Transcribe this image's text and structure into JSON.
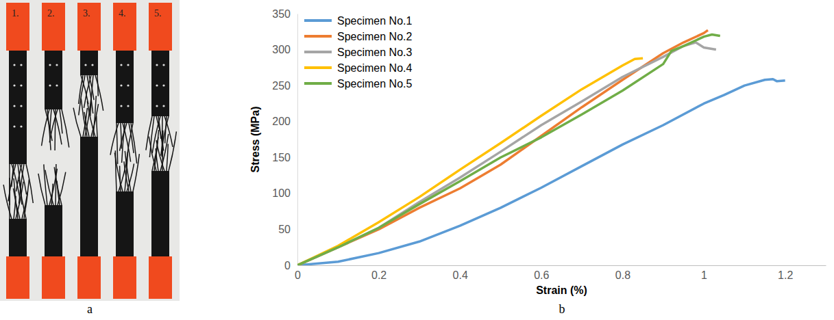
{
  "photo": {
    "panel_label": "a",
    "specimen_labels": [
      "1.",
      "2.",
      "3.",
      "4.",
      "5."
    ]
  },
  "chart_data": {
    "type": "line",
    "panel_label": "b",
    "x_label": "Strain (%)",
    "y_label": "Stress (MPa)",
    "xlim": [
      0,
      1.3
    ],
    "xticks": [
      0,
      0.2,
      0.4,
      0.6,
      0.8,
      1,
      1.2
    ],
    "ylim": [
      0,
      350
    ],
    "yticks": [
      0,
      50,
      100,
      150,
      200,
      250,
      300,
      350
    ],
    "grid": false,
    "legend": "upper left",
    "series": [
      {
        "name": "Specimen No.1",
        "color": "#5b9bd5",
        "x": [
          0,
          0.1,
          0.2,
          0.3,
          0.4,
          0.5,
          0.6,
          0.7,
          0.8,
          0.9,
          1.0,
          1.05,
          1.1,
          1.15,
          1.17,
          1.18,
          1.2
        ],
        "values": [
          0,
          5,
          17,
          33,
          55,
          80,
          108,
          138,
          168,
          195,
          225,
          237,
          250,
          258,
          259,
          256,
          257
        ]
      },
      {
        "name": "Specimen No.2",
        "color": "#ed7d31",
        "x": [
          0,
          0.1,
          0.2,
          0.3,
          0.4,
          0.5,
          0.6,
          0.7,
          0.8,
          0.9,
          0.95,
          1.0,
          1.01
        ],
        "values": [
          0,
          25,
          50,
          80,
          107,
          140,
          180,
          220,
          258,
          295,
          310,
          323,
          327
        ]
      },
      {
        "name": "Specimen No.3",
        "color": "#a5a5a5",
        "x": [
          0,
          0.1,
          0.2,
          0.3,
          0.4,
          0.5,
          0.6,
          0.7,
          0.8,
          0.9,
          0.95,
          0.98,
          1.0,
          1.03
        ],
        "values": [
          0,
          25,
          52,
          88,
          122,
          158,
          195,
          228,
          262,
          290,
          305,
          310,
          303,
          300
        ]
      },
      {
        "name": "Specimen No.4",
        "color": "#ffc000",
        "x": [
          0,
          0.1,
          0.2,
          0.3,
          0.4,
          0.5,
          0.6,
          0.7,
          0.8,
          0.83,
          0.85
        ],
        "values": [
          0,
          27,
          60,
          95,
          133,
          170,
          208,
          245,
          278,
          287,
          288
        ]
      },
      {
        "name": "Specimen No.5",
        "color": "#70ad47",
        "x": [
          0,
          0.1,
          0.2,
          0.3,
          0.4,
          0.5,
          0.6,
          0.7,
          0.8,
          0.9,
          0.92,
          0.95,
          1.0,
          1.02,
          1.04
        ],
        "values": [
          0,
          25,
          52,
          85,
          117,
          150,
          178,
          210,
          243,
          280,
          298,
          305,
          318,
          321,
          319
        ]
      }
    ]
  }
}
